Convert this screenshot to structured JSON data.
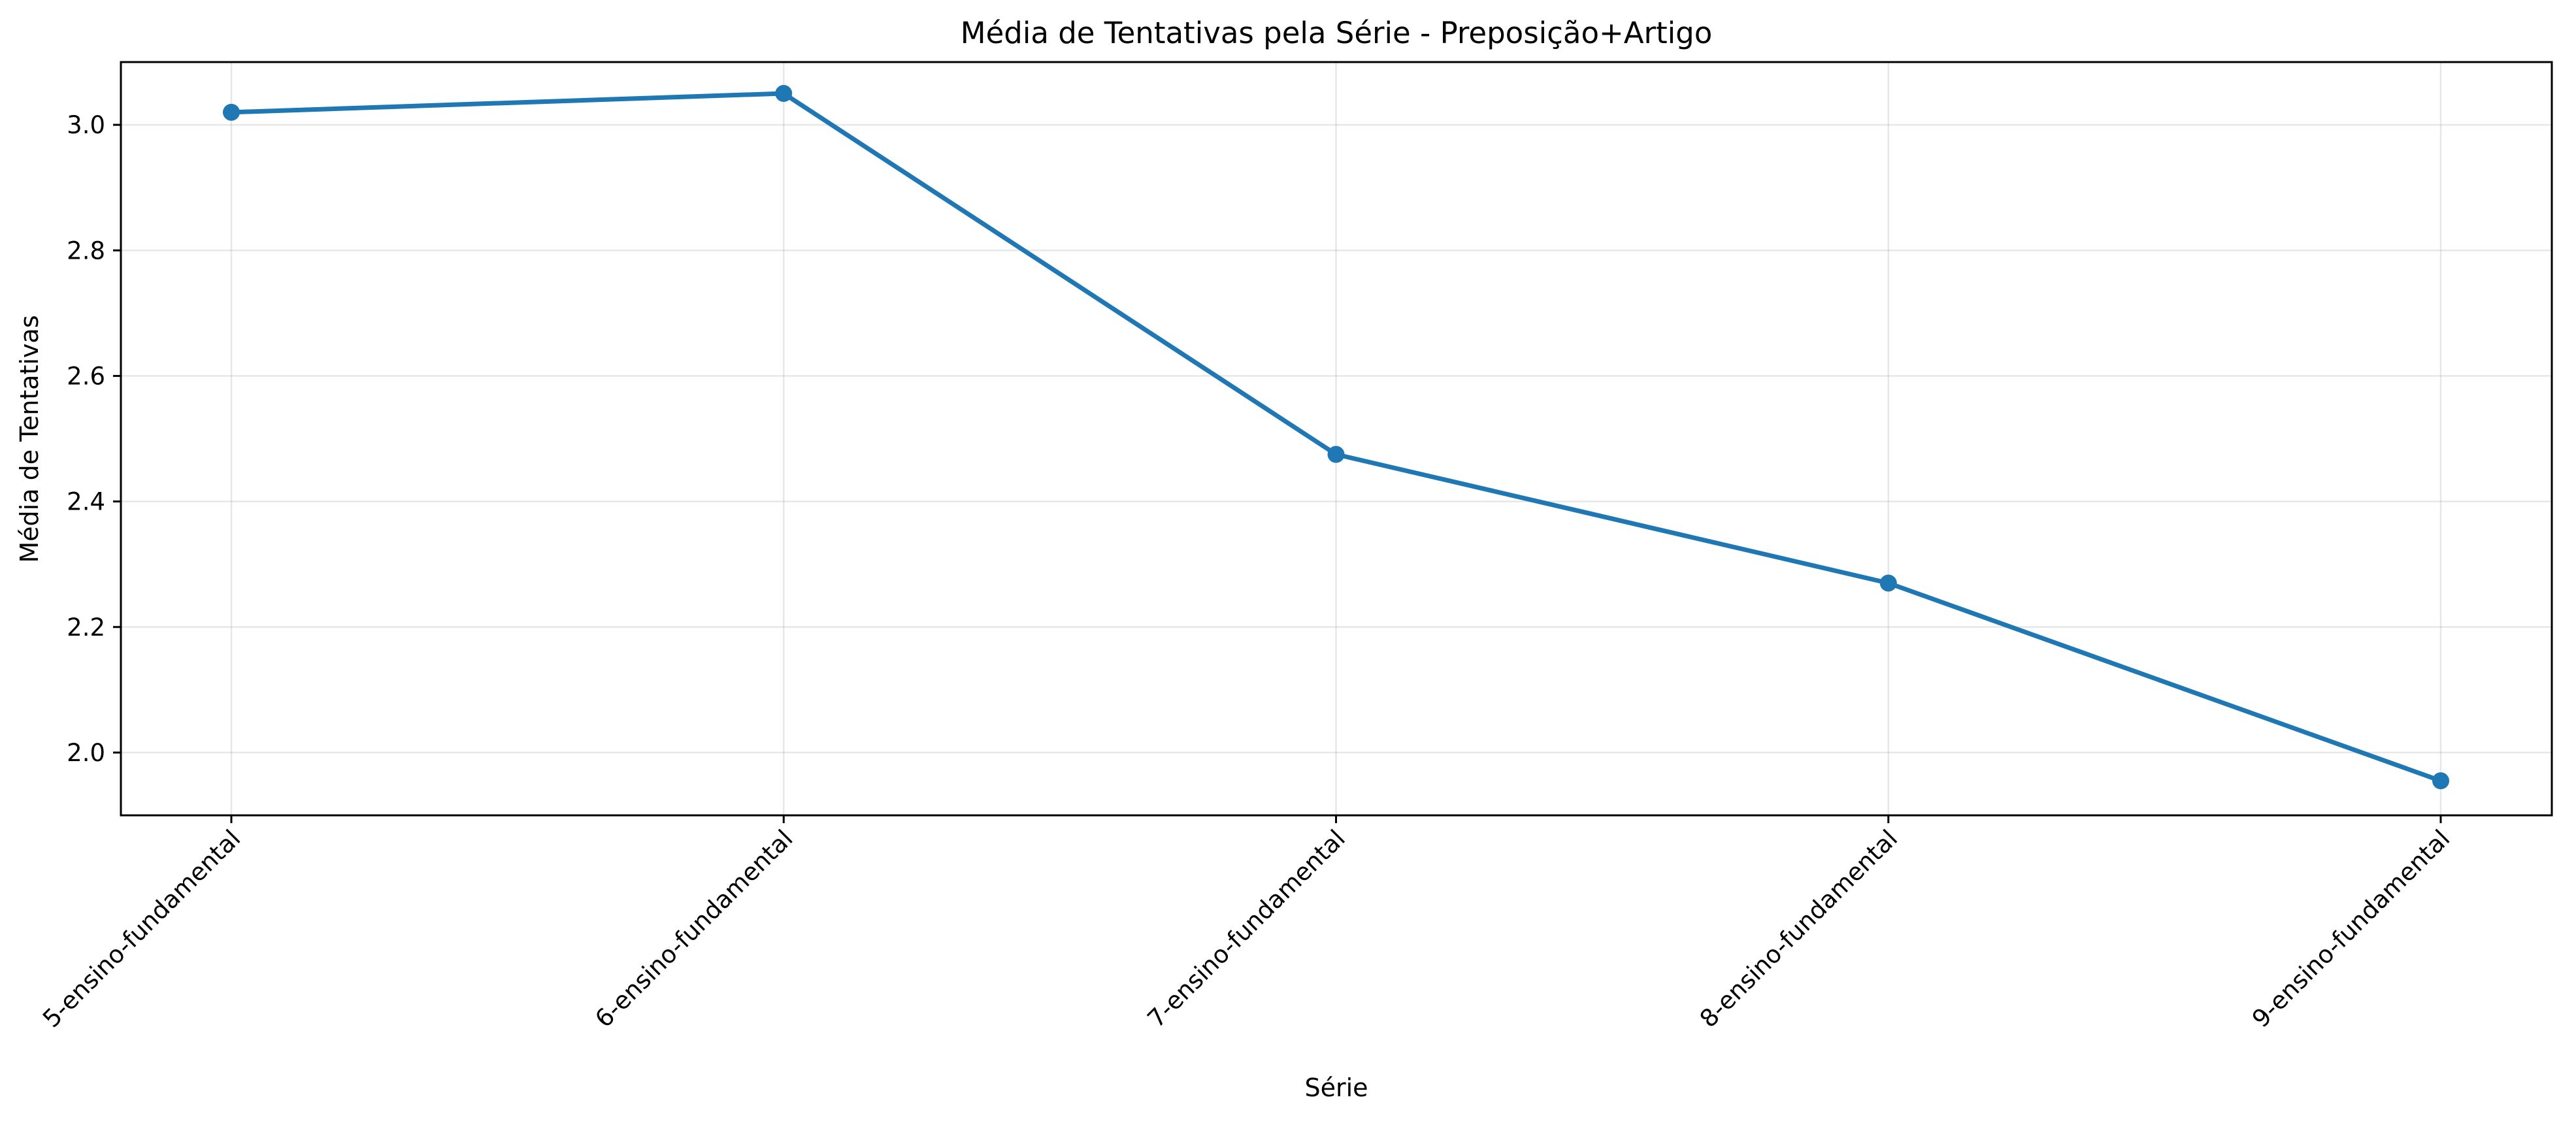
{
  "chart_data": {
    "type": "line",
    "title": "Média de Tentativas pela Série - Preposição+Artigo",
    "xlabel": "Série",
    "ylabel": "Média de Tentativas",
    "categories": [
      "5-ensino-fundamental",
      "6-ensino-fundamental",
      "7-ensino-fundamental",
      "8-ensino-fundamental",
      "9-ensino-fundamental"
    ],
    "series": [
      {
        "values": [
          3.02,
          3.05,
          2.475,
          2.27,
          1.955
        ],
        "color": "#1f77b4"
      }
    ],
    "ylim": [
      1.9,
      3.1
    ],
    "yticks": [
      2.0,
      2.2,
      2.4,
      2.6,
      2.8,
      3.0
    ],
    "ytick_labels": [
      "2.0",
      "2.2",
      "2.4",
      "2.6",
      "2.8",
      "3.0"
    ],
    "grid": true,
    "markers": true,
    "xtick_rotation": 45
  }
}
